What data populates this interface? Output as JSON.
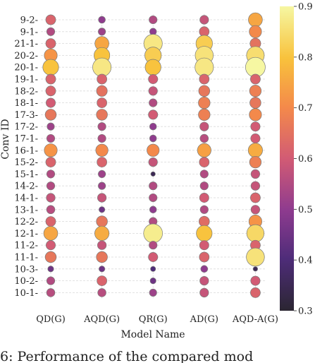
{
  "chart_data": {
    "type": "scatter",
    "xlabel": "Model Name",
    "ylabel": "Conv ID",
    "categories_x": [
      "QD(G)",
      "AQD(G)",
      "QR(G)",
      "AD(G)",
      "AQD-A(G)"
    ],
    "categories_y": [
      "9-2",
      "9-1",
      "21-1",
      "20-2",
      "20-1",
      "19-1",
      "18-2",
      "18-1",
      "17-3",
      "17-2",
      "17-1",
      "16-1",
      "15-2",
      "15-1",
      "14-2",
      "14-1",
      "13-1",
      "12-2",
      "12-1",
      "11-2",
      "11-1",
      "10-3",
      "10-2",
      "10-1"
    ],
    "values": [
      [
        0.62,
        0.5,
        0.55,
        0.58,
        0.75
      ],
      [
        0.55,
        0.52,
        0.5,
        0.62,
        0.7
      ],
      [
        0.62,
        0.75,
        0.87,
        0.82,
        0.65
      ],
      [
        0.72,
        0.8,
        0.82,
        0.86,
        0.85
      ],
      [
        0.8,
        0.87,
        0.8,
        0.87,
        0.9
      ],
      [
        0.62,
        0.62,
        0.6,
        0.62,
        0.62
      ],
      [
        0.62,
        0.65,
        0.58,
        0.66,
        0.68
      ],
      [
        0.6,
        0.62,
        0.55,
        0.68,
        0.66
      ],
      [
        0.66,
        0.66,
        0.6,
        0.68,
        0.7
      ],
      [
        0.52,
        0.55,
        0.5,
        0.58,
        0.6
      ],
      [
        0.55,
        0.55,
        0.5,
        0.56,
        0.6
      ],
      [
        0.72,
        0.7,
        0.7,
        0.74,
        0.76
      ],
      [
        0.62,
        0.62,
        0.58,
        0.62,
        0.68
      ],
      [
        0.55,
        0.52,
        0.35,
        0.55,
        0.58
      ],
      [
        0.55,
        0.52,
        0.55,
        0.55,
        0.58
      ],
      [
        0.58,
        0.58,
        0.55,
        0.6,
        0.62
      ],
      [
        0.56,
        0.45,
        0.5,
        0.55,
        0.58
      ],
      [
        0.62,
        0.66,
        0.55,
        0.64,
        0.72
      ],
      [
        0.75,
        0.76,
        0.88,
        0.8,
        0.84
      ],
      [
        0.6,
        0.58,
        0.55,
        0.6,
        0.62
      ],
      [
        0.66,
        0.66,
        0.6,
        0.62,
        0.86
      ],
      [
        0.45,
        0.45,
        0.4,
        0.5,
        0.35
      ],
      [
        0.55,
        0.62,
        0.45,
        0.58,
        0.6
      ],
      [
        0.56,
        0.56,
        0.52,
        0.58,
        0.62
      ]
    ],
    "colorbar": {
      "min": 0.3,
      "max": 0.9,
      "ticks": [
        "0.3",
        "0.4",
        "0.5",
        "0.6",
        "0.7",
        "0.8",
        "0.9"
      ]
    },
    "encoding": "marker color and size both encode the value",
    "grid": true,
    "colormap": "inferno-like: dark purple (low) to yellow (high)"
  },
  "caption": "6: Performance of the compared mod"
}
